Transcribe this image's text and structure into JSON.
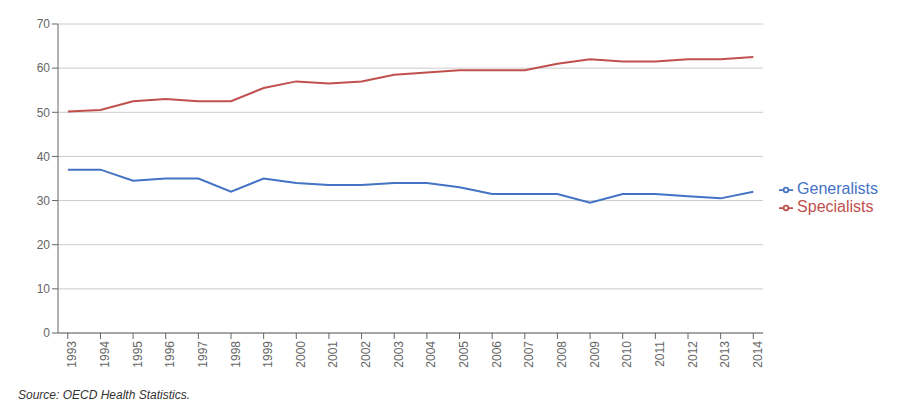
{
  "chart_data": {
    "type": "line",
    "x": [
      1993,
      1994,
      1995,
      1996,
      1997,
      1998,
      1999,
      2000,
      2001,
      2002,
      2003,
      2004,
      2005,
      2006,
      2007,
      2008,
      2009,
      2010,
      2011,
      2012,
      2013,
      2014
    ],
    "series": [
      {
        "name": "Specialists",
        "color": "#c0504d",
        "values": [
          50.2,
          50.5,
          52.5,
          53.0,
          52.5,
          52.5,
          55.5,
          57.0,
          56.5,
          57.0,
          58.5,
          59.0,
          59.5,
          59.5,
          59.5,
          61.0,
          62.0,
          61.5,
          61.5,
          62.0,
          62.0,
          62.5
        ]
      },
      {
        "name": "Generalists",
        "color": "#4472c4",
        "values": [
          37.0,
          37.0,
          34.5,
          35.0,
          35.0,
          32.0,
          35.0,
          34.0,
          33.5,
          33.5,
          34.0,
          34.0,
          33.0,
          31.5,
          31.5,
          31.5,
          29.5,
          31.5,
          31.5,
          31.0,
          30.5,
          32.0
        ]
      }
    ],
    "xlim": [
      1992.7,
      2014.3
    ],
    "xticks": [
      1993,
      1994,
      1995,
      1996,
      1997,
      1998,
      1999,
      2000,
      2001,
      2002,
      2003,
      2004,
      2005,
      2006,
      2007,
      2008,
      2009,
      2010,
      2011,
      2012,
      2013,
      2014
    ],
    "ylim": [
      0,
      70
    ],
    "yticks": [
      0,
      10,
      20,
      30,
      40,
      50,
      60,
      70
    ],
    "grid": "y",
    "legend": "right",
    "annotations": [
      "Source: OECD Health Statistics."
    ]
  }
}
